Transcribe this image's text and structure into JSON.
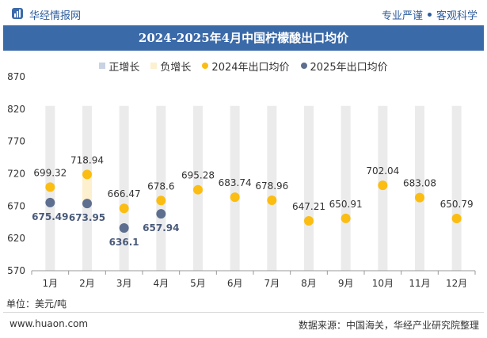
{
  "header": {
    "brand": "华经情报网",
    "tagline_left": "专业严谨",
    "tagline_right": "客观科学"
  },
  "colors": {
    "brand_blue": "#3b6aa9",
    "pos_bar": "#c8d3e3",
    "neg_bar": "#fdf0cf",
    "dot_2024": "#fbbd12",
    "dot_2025": "#5e6e8f",
    "bg_bar": "#ebebeb"
  },
  "footer": {
    "unit": "单位：美元/吨",
    "website": "www.huaon.com",
    "source": "数据来源：中国海关，华经产业研究院整理"
  },
  "chart_data": {
    "type": "bar",
    "title": "2024-2025年4月中国柠檬酸出口均价",
    "categories": [
      "1月",
      "2月",
      "3月",
      "4月",
      "5月",
      "6月",
      "7月",
      "8月",
      "9月",
      "10月",
      "11月",
      "12月"
    ],
    "legend": [
      {
        "name": "正增长",
        "kind": "bar"
      },
      {
        "name": "负增长",
        "kind": "bar"
      },
      {
        "name": "2024年出口均价",
        "kind": "dot"
      },
      {
        "name": "2025年出口均价",
        "kind": "dot"
      }
    ],
    "series": [
      {
        "name": "2024年出口均价",
        "values": [
          699.32,
          718.94,
          666.47,
          678.6,
          695.28,
          683.74,
          678.96,
          647.21,
          650.91,
          702.04,
          683.08,
          650.79
        ]
      },
      {
        "name": "2025年出口均价",
        "values": [
          675.49,
          673.95,
          636.1,
          657.94,
          null,
          null,
          null,
          null,
          null,
          null,
          null,
          null
        ]
      }
    ],
    "change_bars": [
      {
        "category": "2月",
        "from": 673.95,
        "to": 718.94,
        "kind": "负增长"
      }
    ],
    "background_bar_top": 825,
    "ylim": [
      570,
      870
    ],
    "yticks": [
      570,
      620,
      670,
      720,
      770,
      820,
      870
    ],
    "grid": false,
    "legend_position": "top"
  }
}
